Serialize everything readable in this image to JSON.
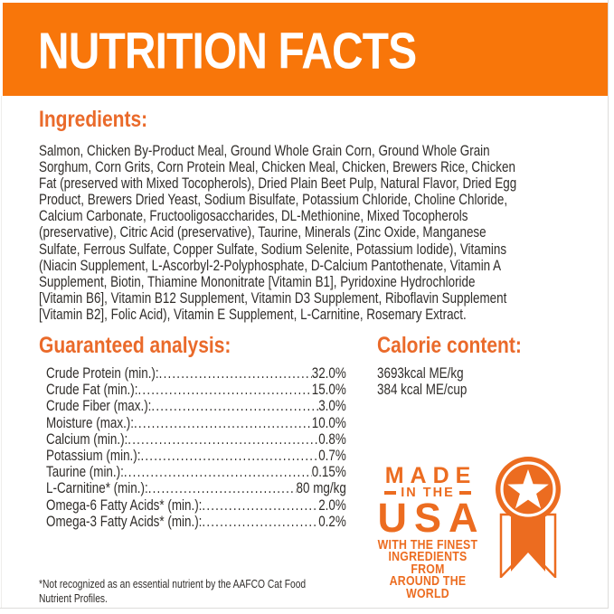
{
  "header": {
    "title": "NUTRITION FACTS"
  },
  "ingredients": {
    "heading": "Ingredients:",
    "text": "Salmon, Chicken By-Product Meal, Ground Whole Grain Corn, Ground Whole Grain\nSorghum, Corn Grits, Corn Protein Meal, Chicken Meal, Chicken, Brewers Rice, Chicken\nFat (preserved with Mixed Tocopherols), Dried Plain Beet Pulp, Natural Flavor, Dried Egg\nProduct, Brewers Dried Yeast, Sodium Bisulfate, Potassium Chloride, Choline Chloride,\nCalcium Carbonate, Fructooligosaccharides, DL-Methionine, Mixed Tocopherols\n(preservative), Citric Acid (preservative), Taurine, Minerals (Zinc Oxide, Manganese\nSulfate, Ferrous Sulfate, Copper Sulfate, Sodium Selenite, Potassium Iodide), Vitamins\n(Niacin Supplement, L-Ascorbyl-2-Polyphosphate, D-Calcium Pantothenate, Vitamin A\nSupplement, Biotin, Thiamine Mononitrate [Vitamin B1], Pyridoxine Hydrochloride\n[Vitamin B6], Vitamin B12 Supplement, Vitamin D3 Supplement, Riboflavin Supplement\n[Vitamin B2], Folic Acid), Vitamin E Supplement, L-Carnitine, Rosemary Extract."
  },
  "guaranteed_analysis": {
    "heading": "Guaranteed analysis:",
    "rows": [
      {
        "label": "Crude Protein (min.):",
        "value": "32.0%"
      },
      {
        "label": "Crude Fat (min.):",
        "value": "15.0%"
      },
      {
        "label": "Crude Fiber (max.):",
        "value": "3.0%"
      },
      {
        "label": "Moisture (max.):",
        "value": "10.0%"
      },
      {
        "label": "Calcium (min.):",
        "value": "0.8%"
      },
      {
        "label": "Potassium (min.):",
        "value": "0.7%"
      },
      {
        "label": "Taurine (min.):",
        "value": "0.15%"
      },
      {
        "label": "L-Carnitine* (min.):",
        "value": "80 mg/kg"
      },
      {
        "label": "Omega-6 Fatty Acids* (min.):",
        "value": "2.0%"
      },
      {
        "label": "Omega-3 Fatty Acids* (min.):",
        "value": "0.2%"
      }
    ],
    "footnote": "*Not recognized as an essential nutrient by the AAFCO Cat Food\nNutrient Profiles."
  },
  "calorie_content": {
    "heading": "Calorie content:",
    "values": "3693kcal ME/kg\n384 kcal ME/cup"
  },
  "made_in_usa": {
    "line1": "MADE",
    "line2": "IN THE",
    "line3": "USA",
    "tagline": "WITH THE FINEST\nINGREDIENTS FROM\nAROUND THE WORLD",
    "icon": "star-medal-ribbon-icon"
  },
  "colors": {
    "accent_bar": "#F8760A",
    "accent_heading": "#EA6A2A",
    "accent_badge": "#EC6C20",
    "body_text": "#302D2A",
    "header_text": "#FFFFFF",
    "edge_line": "#DEDCDA"
  }
}
